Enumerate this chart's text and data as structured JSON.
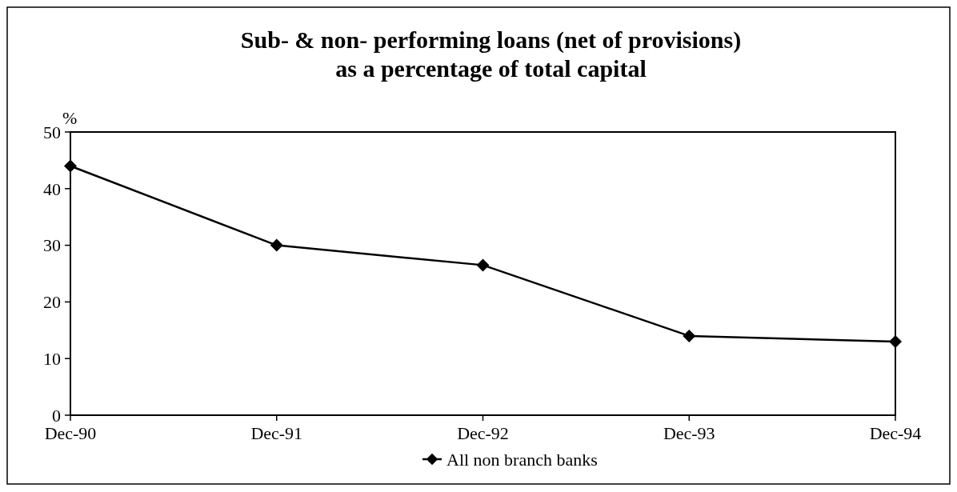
{
  "chart_data": {
    "type": "line",
    "title": "Sub- & non- performing loans (net of provisions) as a percentage of total capital",
    "ylabel": "%",
    "categories": [
      "Dec-90",
      "Dec-91",
      "Dec-92",
      "Dec-93",
      "Dec-94"
    ],
    "series": [
      {
        "name": "All non branch banks",
        "color": "#000000",
        "values": [
          44,
          30,
          26.5,
          14,
          13
        ]
      }
    ],
    "ylim": [
      0,
      50
    ],
    "yticks": [
      0,
      10,
      20,
      30,
      40,
      50
    ],
    "grid": false,
    "legend": "bottom",
    "marker": "diamond",
    "line_style": "solid"
  }
}
